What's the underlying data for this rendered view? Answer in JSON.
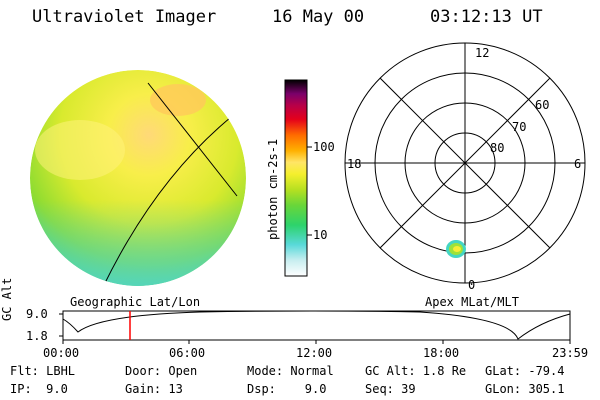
{
  "header": {
    "instrument": "Ultraviolet Imager",
    "date": "16 May 00",
    "time": "03:12:13 UT"
  },
  "colorbar": {
    "label": "photon cm-2s-1",
    "ticks": [
      "100",
      "10"
    ],
    "colors": [
      "#ffffff",
      "#c8eef0",
      "#59d9d9",
      "#2dd36b",
      "#68d63a",
      "#b6e021",
      "#f5ef2d",
      "#ffe566",
      "#ffb000",
      "#ff6a00",
      "#e4001b",
      "#b80048",
      "#7a006a",
      "#33002f",
      "#000000"
    ]
  },
  "left_panel": {
    "caption": "Geographic Lat/Lon"
  },
  "polar_plot": {
    "caption": "Apex MLat/MLT",
    "mlt_labels": {
      "top": "12",
      "left": "18",
      "right": "6",
      "bottom": "0"
    },
    "lat_labels": [
      "60",
      "70",
      "80"
    ]
  },
  "timeline": {
    "ylabel": "GC Alt",
    "y_ticks": [
      "9.0",
      "1.8"
    ],
    "x_ticks": [
      "00:00",
      "06:00",
      "12:00",
      "18:00",
      "23:59"
    ],
    "marker_time": "03:12",
    "marker_color": "#ff0000"
  },
  "info": {
    "row1": [
      "Flt: LBHL",
      "Door: Open",
      "Mode: Normal",
      "GC Alt: 1.8 Re",
      "GLat: -79.4"
    ],
    "row2": [
      "IP:  9.0",
      "Gain: 13",
      "Dsp:    9.0",
      "Seq: 39",
      "GLon: 305.1"
    ]
  }
}
